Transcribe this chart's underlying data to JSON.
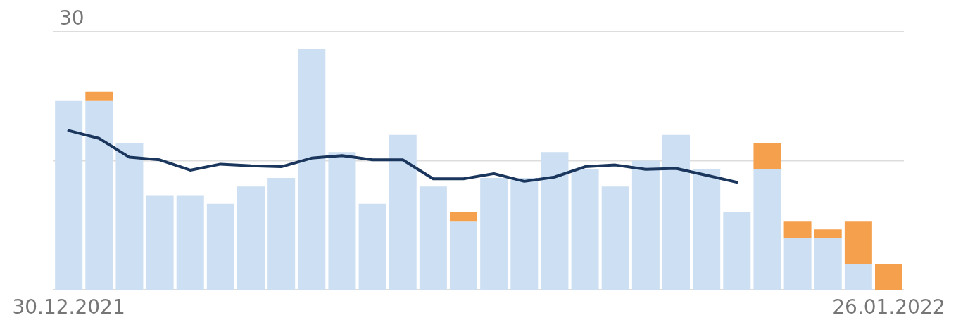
{
  "chart_data": {
    "type": "bar",
    "stacked": true,
    "categories": [
      "30.12.2021",
      null,
      null,
      null,
      null,
      null,
      null,
      null,
      null,
      null,
      null,
      null,
      null,
      null,
      null,
      null,
      null,
      null,
      null,
      null,
      null,
      null,
      null,
      null,
      null,
      null,
      null,
      "26.01.2022"
    ],
    "series": [
      {
        "color": "#cddff2",
        "values": [
          22,
          22,
          17,
          11,
          11,
          10,
          12,
          13,
          28,
          16,
          10,
          18,
          12,
          8,
          13,
          13,
          16,
          14,
          12,
          15,
          18,
          14,
          9,
          14,
          6,
          6,
          3,
          null
        ]
      },
      {
        "color": "#f4a04d",
        "values": [
          null,
          1,
          null,
          null,
          null,
          null,
          null,
          null,
          null,
          null,
          null,
          null,
          null,
          1,
          null,
          null,
          null,
          null,
          null,
          null,
          null,
          null,
          null,
          3,
          2,
          1,
          5,
          3
        ]
      },
      {
        "type": "line",
        "color": "#1b365d",
        "values": [
          18.5,
          17.6,
          15.4,
          15.1,
          13.9,
          14.6,
          14.4,
          14.3,
          15.3,
          15.6,
          15.1,
          15.1,
          12.9,
          12.9,
          13.5,
          12.6,
          13.1,
          14.3,
          14.5,
          14.0,
          14.1,
          13.3,
          12.5,
          null,
          null,
          null,
          null,
          null
        ]
      }
    ],
    "ylim": [
      0,
      30
    ],
    "yticks": [
      {
        "value": 0,
        "label": null
      },
      {
        "value": 15,
        "label": null
      },
      30
    ],
    "grid": "y"
  }
}
